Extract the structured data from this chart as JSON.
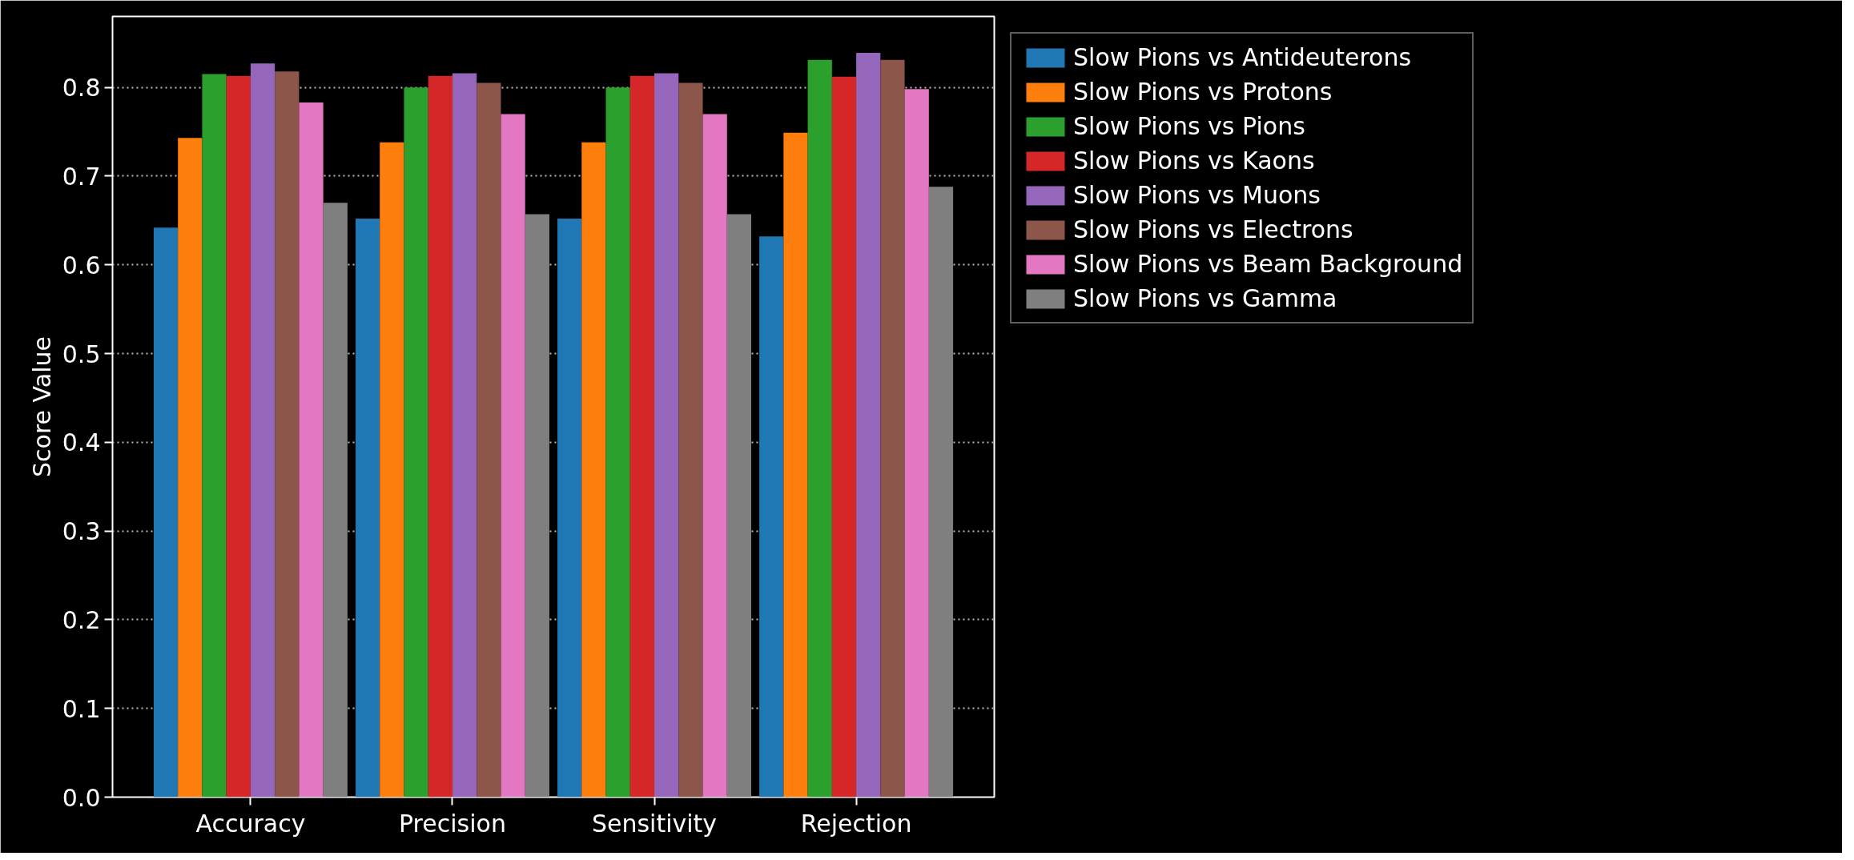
{
  "chart_data": {
    "type": "bar",
    "ylabel": "Score Value",
    "categories": [
      "Accuracy",
      "Precision",
      "Sensitivity",
      "Rejection"
    ],
    "series": [
      {
        "name": "Slow Pions vs Antideuterons",
        "color": "#1f77b4",
        "values": [
          0.642,
          0.652,
          0.652,
          0.632
        ]
      },
      {
        "name": "Slow Pions vs Protons",
        "color": "#ff7f0e",
        "values": [
          0.743,
          0.738,
          0.738,
          0.749
        ]
      },
      {
        "name": "Slow Pions vs Pions",
        "color": "#2ca02c",
        "values": [
          0.815,
          0.8,
          0.8,
          0.831
        ]
      },
      {
        "name": "Slow Pions vs Kaons",
        "color": "#d62728",
        "values": [
          0.813,
          0.813,
          0.813,
          0.812
        ]
      },
      {
        "name": "Slow Pions vs Muons",
        "color": "#9467bd",
        "values": [
          0.827,
          0.816,
          0.816,
          0.839
        ]
      },
      {
        "name": "Slow Pions vs Electrons",
        "color": "#8c564b",
        "values": [
          0.818,
          0.805,
          0.805,
          0.831
        ]
      },
      {
        "name": "Slow Pions vs Beam Background",
        "color": "#e377c2",
        "values": [
          0.783,
          0.77,
          0.77,
          0.798
        ]
      },
      {
        "name": "Slow Pions vs Gamma",
        "color": "#7f7f7f",
        "values": [
          0.67,
          0.657,
          0.657,
          0.688
        ]
      }
    ],
    "ylim": [
      0,
      0.88
    ],
    "yticks": [
      {
        "value": 0,
        "label": "0.0"
      },
      0.1,
      0.2,
      0.3,
      0.4,
      0.5,
      0.6,
      0.7,
      0.8
    ],
    "grid": "y",
    "legend": "top right"
  }
}
